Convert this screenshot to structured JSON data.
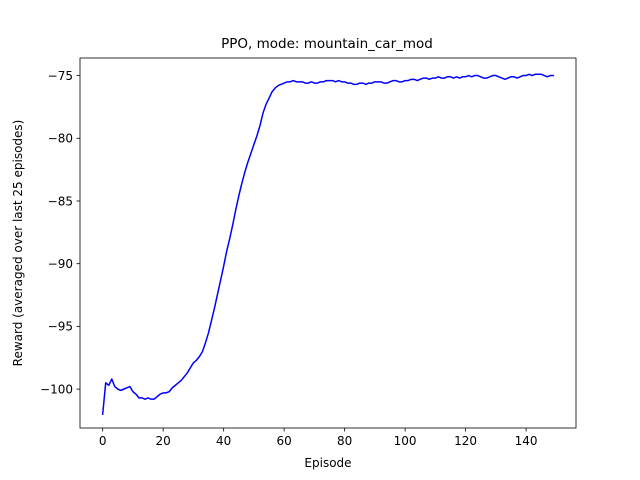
{
  "chart_data": {
    "type": "line",
    "title": "PPO, mode: mountain_car_mod",
    "xlabel": "Episode",
    "ylabel": "Reward (averaged over last 25 episodes)",
    "xlim": [
      -7.5,
      156.5
    ],
    "ylim": [
      -103.1,
      -73.6
    ],
    "xticks": [
      0,
      20,
      40,
      60,
      80,
      100,
      120,
      140
    ],
    "yticks": [
      -100,
      -95,
      -90,
      -85,
      -80,
      -75
    ],
    "grid": false,
    "line_color": "#0000ff",
    "series": [
      {
        "x": [
          0,
          1,
          2,
          3,
          4,
          5,
          6,
          7,
          8,
          9,
          10,
          11,
          12,
          13,
          14,
          15,
          16,
          17,
          18,
          19,
          20,
          21,
          22,
          23,
          24,
          25,
          26,
          27,
          28,
          29,
          30,
          31,
          32,
          33,
          34,
          35,
          36,
          37,
          38,
          39,
          40,
          41,
          42,
          43,
          44,
          45,
          46,
          47,
          48,
          49,
          50,
          51,
          52,
          53,
          54,
          55,
          56,
          57,
          58,
          59,
          60,
          61,
          62,
          63,
          64,
          65,
          66,
          67,
          68,
          69,
          70,
          71,
          72,
          73,
          74,
          75,
          76,
          77,
          78,
          79,
          80,
          81,
          82,
          83,
          84,
          85,
          86,
          87,
          88,
          89,
          90,
          91,
          92,
          93,
          94,
          95,
          96,
          97,
          98,
          99,
          100,
          101,
          102,
          103,
          104,
          105,
          106,
          107,
          108,
          109,
          110,
          111,
          112,
          113,
          114,
          115,
          116,
          117,
          118,
          119,
          120,
          121,
          122,
          123,
          124,
          125,
          126,
          127,
          128,
          129,
          130,
          131,
          132,
          133,
          134,
          135,
          136,
          137,
          138,
          139,
          140,
          141,
          142,
          143,
          144,
          145,
          146,
          147,
          148,
          149
        ],
        "values": [
          -102.0,
          -99.5,
          -99.7,
          -99.2,
          -99.8,
          -100.0,
          -100.1,
          -100.0,
          -99.9,
          -99.8,
          -100.2,
          -100.4,
          -100.7,
          -100.7,
          -100.8,
          -100.7,
          -100.8,
          -100.8,
          -100.6,
          -100.4,
          -100.3,
          -100.3,
          -100.2,
          -99.9,
          -99.7,
          -99.5,
          -99.3,
          -99.0,
          -98.7,
          -98.3,
          -97.9,
          -97.7,
          -97.4,
          -97.0,
          -96.3,
          -95.5,
          -94.5,
          -93.5,
          -92.4,
          -91.3,
          -90.2,
          -89.0,
          -88.0,
          -86.9,
          -85.7,
          -84.6,
          -83.6,
          -82.7,
          -81.9,
          -81.2,
          -80.5,
          -79.8,
          -79.0,
          -78.0,
          -77.3,
          -76.8,
          -76.3,
          -76.0,
          -75.8,
          -75.7,
          -75.6,
          -75.5,
          -75.5,
          -75.4,
          -75.5,
          -75.5,
          -75.5,
          -75.6,
          -75.6,
          -75.5,
          -75.6,
          -75.6,
          -75.5,
          -75.5,
          -75.4,
          -75.4,
          -75.4,
          -75.5,
          -75.4,
          -75.5,
          -75.5,
          -75.6,
          -75.6,
          -75.7,
          -75.7,
          -75.6,
          -75.6,
          -75.7,
          -75.6,
          -75.6,
          -75.5,
          -75.5,
          -75.5,
          -75.6,
          -75.6,
          -75.5,
          -75.4,
          -75.4,
          -75.5,
          -75.5,
          -75.4,
          -75.4,
          -75.3,
          -75.3,
          -75.4,
          -75.3,
          -75.2,
          -75.2,
          -75.3,
          -75.2,
          -75.2,
          -75.1,
          -75.2,
          -75.2,
          -75.1,
          -75.1,
          -75.2,
          -75.1,
          -75.2,
          -75.1,
          -75.1,
          -75.0,
          -75.1,
          -75.0,
          -75.0,
          -75.1,
          -75.2,
          -75.2,
          -75.1,
          -75.0,
          -75.0,
          -75.1,
          -75.2,
          -75.3,
          -75.2,
          -75.1,
          -75.1,
          -75.2,
          -75.1,
          -75.0,
          -75.0,
          -74.9,
          -75.0,
          -74.9,
          -74.9,
          -74.9,
          -75.0,
          -75.1,
          -75.0,
          -75.0
        ]
      }
    ]
  }
}
